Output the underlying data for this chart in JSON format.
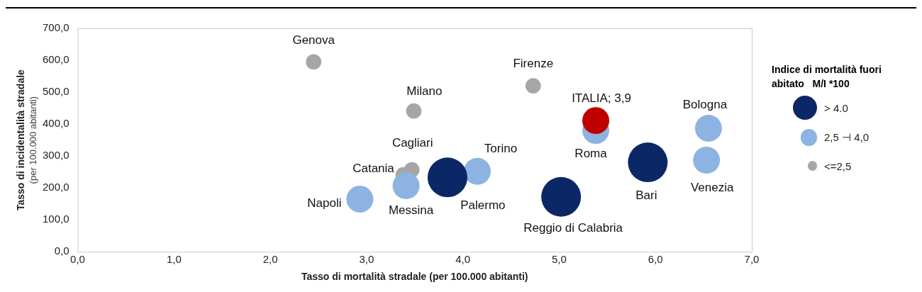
{
  "chart_data": {
    "type": "bubble",
    "xlabel": "Tasso di mortalità stradale (per 100.000 abitanti)",
    "ylabel": "Tasso di incidentalità stradale (per 100.000 abitanti)",
    "legend_title": "Indice di mortalità fuori abitato   M/I *100",
    "legend": "right",
    "xlim": [
      0,
      7
    ],
    "xticks": [
      {
        "value": 0,
        "label": "0,0"
      },
      {
        "value": 1,
        "label": "1,0"
      },
      {
        "value": 2,
        "label": "2,0"
      },
      {
        "value": 3,
        "label": "3,0"
      },
      {
        "value": 4,
        "label": "4,0"
      },
      {
        "value": 5,
        "label": "5,0"
      },
      {
        "value": 6,
        "label": "6,0"
      },
      {
        "value": 7,
        "label": "7,0"
      }
    ],
    "ylim": [
      0,
      700
    ],
    "yticks": [
      {
        "value": 0,
        "label": "0,0"
      },
      {
        "value": 100,
        "label": "100,0"
      },
      {
        "value": 200,
        "label": "200,0"
      },
      {
        "value": 300,
        "label": "300,0"
      },
      {
        "value": 400,
        "label": "400,0"
      },
      {
        "value": 500,
        "label": "500,0"
      },
      {
        "value": 600,
        "label": "600,0"
      },
      {
        "value": 700,
        "label": "700,0"
      }
    ],
    "grid": false,
    "series": [
      {
        "name": ">  4.0",
        "color": "#0c2766",
        "x": [
          3.84,
          5.02,
          5.92
        ],
        "values": [
          233,
          172,
          280
        ],
        "sizes": [
          1,
          1,
          1
        ]
      },
      {
        "name": "2,5 ⊣ 4,0",
        "color": "#8db3e2",
        "x": [
          2.93,
          3.41,
          4.15,
          5.38,
          6.55,
          6.53
        ],
        "values": [
          165,
          207,
          252,
          380,
          387,
          287
        ],
        "sizes": [
          0.46,
          0.46,
          0.46,
          0.46,
          0.46,
          0.46
        ]
      },
      {
        "name": "<=2,5",
        "color": "#a6a6a6",
        "x": [
          2.45,
          3.49,
          4.73,
          3.47,
          3.38
        ],
        "values": [
          595,
          441,
          520,
          257,
          241
        ],
        "sizes": [
          0.15,
          0.15,
          0.15,
          0.15,
          0.15
        ]
      },
      {
        "color": "#c00000",
        "x": [
          5.38
        ],
        "values": [
          411
        ],
        "sizes": [
          0.46
        ]
      }
    ],
    "annotations": [
      {
        "text": "Genova",
        "x": 2.45,
        "y": 595
      },
      {
        "text": "Milano",
        "x": 3.49,
        "y": 441
      },
      {
        "text": "Firenze",
        "x": 4.73,
        "y": 520
      },
      {
        "text": "ITALIA; 3,9",
        "x": 5.38,
        "y": 411
      },
      {
        "text": "Roma",
        "x": 5.38,
        "y": 380
      },
      {
        "text": "Bologna",
        "x": 6.55,
        "y": 387
      },
      {
        "text": "Venezia",
        "x": 6.53,
        "y": 287
      },
      {
        "text": "Bari",
        "x": 5.92,
        "y": 280
      },
      {
        "text": "Reggio di Calabria",
        "x": 5.02,
        "y": 172
      },
      {
        "text": "Torino",
        "x": 4.15,
        "y": 252
      },
      {
        "text": "Palermo",
        "x": 3.84,
        "y": 233
      },
      {
        "text": "Cagliari",
        "x": 3.47,
        "y": 257
      },
      {
        "text": "Catania",
        "x": 3.38,
        "y": 241
      },
      {
        "text": "Messina",
        "x": 3.41,
        "y": 207
      },
      {
        "text": "Napoli",
        "x": 2.93,
        "y": 165
      }
    ]
  }
}
